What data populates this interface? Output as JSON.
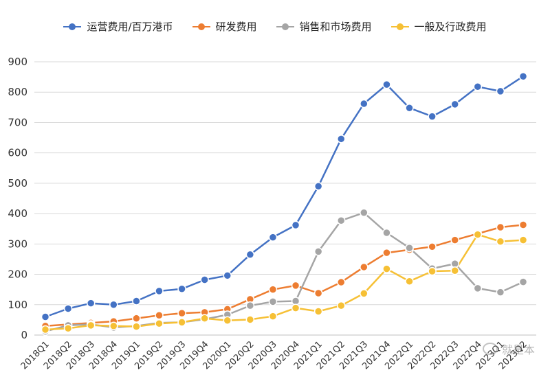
{
  "chart_data": {
    "type": "line",
    "title": "",
    "xlabel": "",
    "ylabel": "",
    "ylim": [
      0,
      900
    ],
    "yticks": [
      0,
      100,
      200,
      300,
      400,
      500,
      600,
      700,
      800,
      900
    ],
    "grid": true,
    "legend_position": "top",
    "categories": [
      "2018Q1",
      "2018Q2",
      "2018Q3",
      "2018Q4",
      "2019Q1",
      "2019Q2",
      "2019Q3",
      "2019Q4",
      "2020Q1",
      "2020Q2",
      "2020Q3",
      "2020Q4",
      "2021Q1",
      "2021Q2",
      "2021Q3",
      "2021Q4",
      "2022Q1",
      "2022Q2",
      "2022Q3",
      "2022Q4",
      "2023Q1",
      "2023Q2"
    ],
    "series": [
      {
        "name": "运营费用/百万港币",
        "color": "#4472C4",
        "values": [
          60,
          87,
          105,
          100,
          112,
          145,
          152,
          182,
          196,
          265,
          322,
          362,
          490,
          646,
          762,
          825,
          748,
          720,
          760,
          818,
          803,
          852
        ]
      },
      {
        "name": "研发费用",
        "color": "#ED7D31",
        "values": [
          30,
          35,
          40,
          45,
          55,
          65,
          72,
          75,
          85,
          118,
          150,
          163,
          138,
          174,
          224,
          271,
          281,
          291,
          313,
          334,
          355,
          363
        ]
      },
      {
        "name": "销售和市场费用",
        "color": "#A5A5A5",
        "values": [
          12,
          32,
          35,
          25,
          30,
          40,
          42,
          52,
          67,
          97,
          110,
          112,
          275,
          377,
          403,
          337,
          287,
          219,
          235,
          154,
          141,
          175
        ]
      },
      {
        "name": "一般及行政费用",
        "color": "#F6C035",
        "values": [
          18,
          22,
          32,
          30,
          28,
          38,
          42,
          55,
          48,
          51,
          62,
          89,
          78,
          97,
          137,
          218,
          177,
          210,
          212,
          331,
          308,
          313
        ]
      }
    ]
  },
  "watermark": {
    "text": "就是本"
  },
  "colors": {
    "grid": "#d9d9d9",
    "axis_text": "#333333"
  }
}
